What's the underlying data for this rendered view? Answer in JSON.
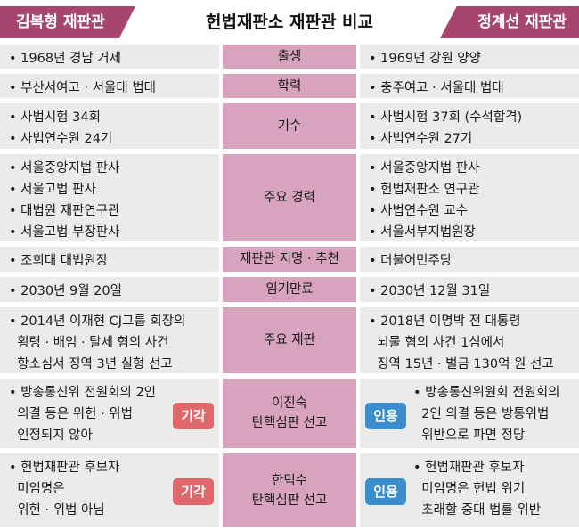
{
  "header": {
    "left_label": "김복형 재판관",
    "title": "헌법재판소 재판관 비교",
    "right_label": "정계선 재판관"
  },
  "colors": {
    "accent": "#a6456e",
    "mid_column": "#d8a3bd",
    "cell_bg": "#ecebeb",
    "badge_rejected": "#e0686a",
    "badge_accepted": "#3a8ecd"
  },
  "rows": [
    {
      "category": [
        "출생"
      ],
      "left": [
        "• 1968년 경남 거제"
      ],
      "right": [
        "• 1969년 강원 양양"
      ]
    },
    {
      "category": [
        "학력"
      ],
      "left": [
        "• 부산서여고 · 서울대 법대"
      ],
      "right": [
        "• 충주여고 · 서울대 법대"
      ]
    },
    {
      "category": [
        "기수"
      ],
      "left": [
        "• 사법시험 34회",
        "• 사법연수원 24기"
      ],
      "right": [
        "• 사법시험 37회 (수석합격)",
        "• 사법연수원 27기"
      ]
    },
    {
      "category": [
        "주요 경력"
      ],
      "left": [
        "• 서울중앙지법 판사",
        "• 서울고법 판사",
        "• 대법원 재판연구관",
        "• 서울고법 부장판사"
      ],
      "right": [
        "• 서울중앙지법 판사",
        "• 헌법재판소 연구관",
        "• 사법연수원 교수",
        "• 서울서부지법원장"
      ]
    },
    {
      "category": [
        "재판관 지명 · 추천"
      ],
      "left": [
        "• 조희대 대법원장"
      ],
      "right": [
        "• 더불어민주당"
      ]
    },
    {
      "category": [
        "임기만료"
      ],
      "left": [
        "• 2030년 9월 20일"
      ],
      "right": [
        "• 2030년 12월 31일"
      ]
    },
    {
      "category": [
        "주요 재판"
      ],
      "left": [
        "• 2014년 이재현 CJ그룹 회장의",
        "  횡령 · 배임 · 탈세 혐의 사건",
        "  항소심서 징역 3년 실형 선고"
      ],
      "right": [
        "• 2018년 이명박 전 대통령",
        "  뇌물 혐의 사건 1심에서",
        "  징역 15년 · 벌금 130억 원 선고"
      ]
    },
    {
      "category": [
        "이진숙",
        "탄핵심판 선고"
      ],
      "left": [
        "• 방송통신위 전원회의 2인",
        "  의결 등은 위헌 · 위법",
        "  인정되지 않아"
      ],
      "left_badge": "기각",
      "right": [
        "• 방송통신위원회 전원회의",
        "  2인 의결 등은 방통위법",
        "  위반으로 파면 정당"
      ],
      "right_badge": "인용"
    },
    {
      "category": [
        "한덕수",
        "탄핵심판 선고"
      ],
      "left": [
        "• 헌법재판관 후보자",
        "  미임명은",
        "  위헌 · 위법 아님"
      ],
      "left_badge": "기각",
      "right": [
        "• 헌법재판관 후보자",
        "  미임명은 헌법 위기",
        "  초래할 중대 법률 위반"
      ],
      "right_badge": "인용"
    }
  ]
}
